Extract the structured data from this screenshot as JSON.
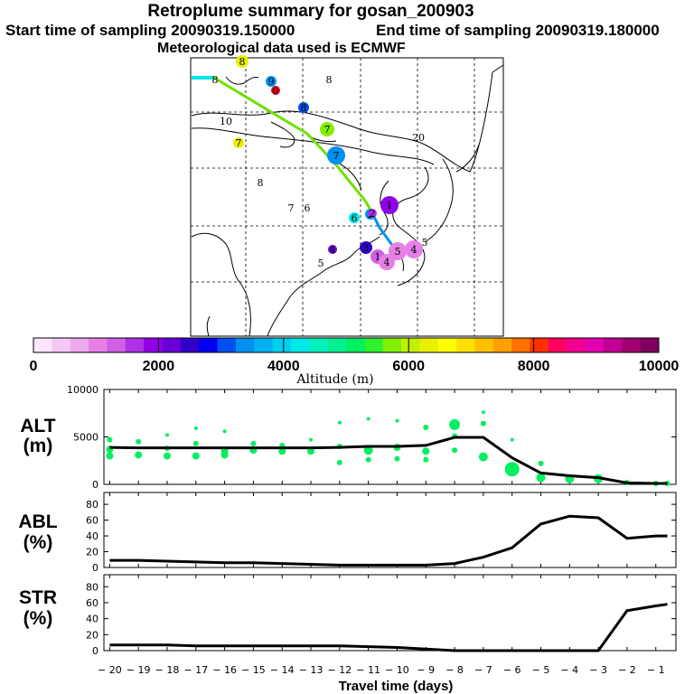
{
  "header": {
    "title": "Retroplume summary for gosan_200903",
    "start": "Start time of sampling 20090319.150000",
    "end": "End time of sampling 20090319.180000",
    "met": "Meteorological data used is ECMWF"
  },
  "colorbar": {
    "label": "Altitude  (m)",
    "ticks": [
      "0",
      "2000",
      "4000",
      "6000",
      "8000",
      "10000"
    ],
    "colors": [
      "#ffe4ff",
      "#f6c8f6",
      "#eeaaee",
      "#e680e6",
      "#d060e6",
      "#b030e6",
      "#9000e6",
      "#6a00d8",
      "#3000c8",
      "#0000f0",
      "#0050f0",
      "#0090f0",
      "#00b0f0",
      "#00d0f0",
      "#00e8e8",
      "#00f0c0",
      "#00f090",
      "#00f060",
      "#30f030",
      "#80f000",
      "#c0f000",
      "#e8f000",
      "#ffff00",
      "#ffe000",
      "#ffc000",
      "#ffa000",
      "#ff7000",
      "#ff3000",
      "#ff0060",
      "#f00090",
      "#e000b0",
      "#c00090",
      "#a00070",
      "#800060"
    ]
  },
  "map": {
    "markers": [
      "8",
      "9",
      "0",
      "8",
      "8",
      "7",
      "10",
      "7",
      "7",
      "20",
      "8",
      "7",
      "6",
      "6",
      "2",
      "1",
      "4",
      "1",
      "5",
      "4",
      "5",
      "5",
      "4",
      "3",
      "2"
    ]
  },
  "panels": {
    "alt_label": [
      "ALT",
      "(m)"
    ],
    "abl_label": [
      "ABL",
      "(%)"
    ],
    "str_label": [
      "STR",
      "(%)"
    ],
    "xlabel": "Travel time (days)",
    "xticks": [
      "-20",
      "-19",
      "-18",
      "-17",
      "-16",
      "-15",
      "-14",
      "-13",
      "-12",
      "-11",
      "-10",
      "-9",
      "-8",
      "-7",
      "-6",
      "-5",
      "-4",
      "-3",
      "-2",
      "-1"
    ]
  },
  "chart_data": [
    {
      "type": "line",
      "title": "ALT",
      "ylabel": "ALT (m)",
      "xlabel": "Travel time (days)",
      "xlim": [
        -20,
        -0.5
      ],
      "ylim": [
        0,
        10000
      ],
      "yticks": [
        "10000",
        "5000",
        "0"
      ],
      "x": [
        -20,
        -19,
        -18,
        -17,
        -16,
        -15,
        -14,
        -13,
        -12,
        -11,
        -10,
        -9,
        -8,
        -7,
        -6,
        -5,
        -4,
        -3,
        -2,
        -1,
        -0.6
      ],
      "values": [
        3900,
        3850,
        3850,
        3850,
        3850,
        3850,
        3850,
        3850,
        3900,
        4000,
        4000,
        4100,
        4950,
        4950,
        2800,
        1200,
        900,
        700,
        150,
        100,
        100
      ],
      "scatter": {
        "color": "#00f060",
        "points": [
          [
            -20,
            4700,
            3
          ],
          [
            -20,
            3700,
            4
          ],
          [
            -20,
            3000,
            4
          ],
          [
            -19,
            4500,
            3
          ],
          [
            -19,
            3100,
            4
          ],
          [
            -18,
            5200,
            2
          ],
          [
            -18,
            3800,
            3
          ],
          [
            -18,
            3000,
            4
          ],
          [
            -17,
            5900,
            2
          ],
          [
            -17,
            4300,
            3
          ],
          [
            -17,
            3000,
            4
          ],
          [
            -16,
            5600,
            2
          ],
          [
            -16,
            3500,
            4
          ],
          [
            -16,
            3100,
            4
          ],
          [
            -15,
            4300,
            3
          ],
          [
            -15,
            3600,
            4
          ],
          [
            -14,
            4100,
            3
          ],
          [
            -14,
            3500,
            4
          ],
          [
            -13,
            4700,
            2
          ],
          [
            -13,
            3500,
            4
          ],
          [
            -12,
            6500,
            2
          ],
          [
            -12,
            4000,
            3
          ],
          [
            -12,
            2300,
            3
          ],
          [
            -11,
            6900,
            2
          ],
          [
            -11,
            3600,
            5
          ],
          [
            -11,
            2600,
            3
          ],
          [
            -10,
            6700,
            2
          ],
          [
            -10,
            3900,
            4
          ],
          [
            -10,
            2700,
            3
          ],
          [
            -9,
            6000,
            3
          ],
          [
            -9,
            3500,
            4
          ],
          [
            -9,
            2600,
            3
          ],
          [
            -8,
            6300,
            6
          ],
          [
            -8,
            5100,
            3
          ],
          [
            -8,
            3600,
            3
          ],
          [
            -7,
            7600,
            2
          ],
          [
            -7,
            6400,
            3
          ],
          [
            -7,
            2900,
            5
          ],
          [
            -6,
            4700,
            2
          ],
          [
            -6,
            1600,
            8
          ],
          [
            -5,
            2200,
            3
          ],
          [
            -5,
            700,
            5
          ],
          [
            -4,
            600,
            5
          ],
          [
            -3,
            600,
            5
          ],
          [
            -2,
            200,
            3
          ],
          [
            -1,
            100,
            3
          ],
          [
            -0.6,
            100,
            3
          ]
        ]
      }
    },
    {
      "type": "line",
      "title": "ABL",
      "ylabel": "ABL (%)",
      "xlim": [
        -20,
        -0.5
      ],
      "ylim": [
        0,
        95
      ],
      "yticks": [
        "80",
        "60",
        "40",
        "20",
        "0"
      ],
      "x": [
        -20,
        -19,
        -18,
        -17,
        -16,
        -15,
        -14,
        -13,
        -12,
        -11,
        -10,
        -9,
        -8,
        -7,
        -6,
        -5,
        -4,
        -3,
        -2,
        -1,
        -0.6
      ],
      "values": [
        9,
        9,
        8,
        7,
        6,
        6,
        5,
        4,
        3,
        3,
        3,
        3,
        5,
        13,
        25,
        55,
        65,
        63,
        37,
        40,
        40
      ]
    },
    {
      "type": "line",
      "title": "STR",
      "ylabel": "STR (%)",
      "xlim": [
        -20,
        -0.5
      ],
      "ylim": [
        0,
        95
      ],
      "yticks": [
        "80",
        "60",
        "40",
        "20",
        "0"
      ],
      "x": [
        -20,
        -19,
        -18,
        -17,
        -16,
        -15,
        -14,
        -13,
        -12,
        -11,
        -10,
        -9,
        -8,
        -7,
        -6,
        -5,
        -4,
        -3,
        -2,
        -1,
        -0.6
      ],
      "values": [
        7,
        7,
        7,
        6,
        6,
        6,
        6,
        6,
        6,
        5,
        4,
        2,
        0,
        0,
        0,
        0,
        0,
        0,
        50,
        56,
        58
      ]
    }
  ]
}
